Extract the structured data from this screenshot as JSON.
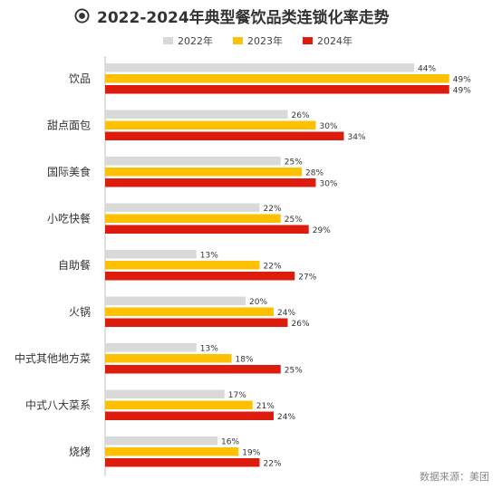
{
  "title": "2022-2024年典型餐饮品类连锁化率走势",
  "source": "数据来源：美团",
  "chart_data": {
    "type": "bar",
    "orientation": "horizontal",
    "categories": [
      "饮品",
      "甜点面包",
      "国际美食",
      "小吃快餐",
      "自助餐",
      "火锅",
      "中式其他地方菜",
      "中式八大菜系",
      "烧烤"
    ],
    "series": [
      {
        "name": "2022年",
        "color": "#d9d9d9",
        "values": [
          44,
          26,
          25,
          22,
          13,
          20,
          13,
          17,
          16
        ]
      },
      {
        "name": "2023年",
        "color": "#ffc000",
        "values": [
          49,
          30,
          28,
          25,
          22,
          24,
          18,
          21,
          19
        ]
      },
      {
        "name": "2024年",
        "color": "#dd1c0e",
        "values": [
          49,
          34,
          30,
          29,
          27,
          26,
          25,
          24,
          22
        ]
      }
    ],
    "value_suffix": "%",
    "xlim": [
      0,
      50
    ],
    "legend_position": "top",
    "grid": false
  }
}
